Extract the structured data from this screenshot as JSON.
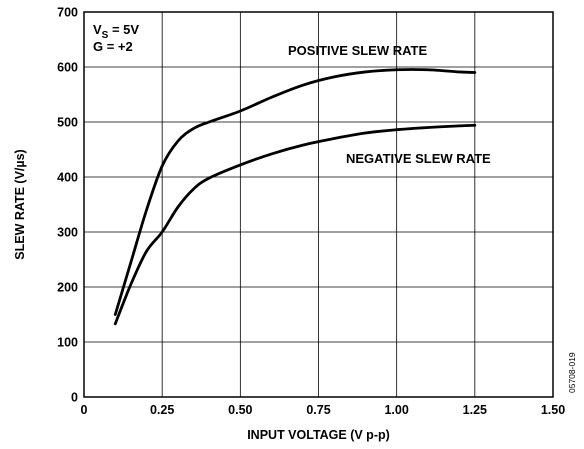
{
  "chart_data": {
    "type": "line",
    "title": "",
    "xlabel": "INPUT VOLTAGE (V p-p)",
    "ylabel": "SLEW RATE (V/µs)",
    "xlim": [
      0,
      1.5
    ],
    "ylim": [
      0,
      700
    ],
    "x_ticks": [
      "0",
      "0.25",
      "0.50",
      "0.75",
      "1.00",
      "1.25",
      "1.50"
    ],
    "x_tick_values": [
      0,
      0.25,
      0.5,
      0.75,
      1.0,
      1.25,
      1.5
    ],
    "y_ticks": [
      "0",
      "100",
      "200",
      "300",
      "400",
      "500",
      "600",
      "700"
    ],
    "y_tick_values": [
      0,
      100,
      200,
      300,
      400,
      500,
      600,
      700
    ],
    "grid": true,
    "conditions": {
      "vs_main": "V",
      "vs_sub": "S",
      "vs_value": " = 5V",
      "gain": "G = +2"
    },
    "series": [
      {
        "name": "POSITIVE SLEW RATE",
        "x": [
          0.1,
          0.15,
          0.2,
          0.25,
          0.3,
          0.35,
          0.4,
          0.5,
          0.6,
          0.7,
          0.8,
          0.9,
          1.0,
          1.1,
          1.2,
          1.25
        ],
        "y": [
          150,
          245,
          340,
          420,
          465,
          488,
          500,
          520,
          545,
          567,
          582,
          591,
          595,
          595,
          591,
          590
        ]
      },
      {
        "name": "NEGATIVE SLEW RATE",
        "x": [
          0.1,
          0.15,
          0.2,
          0.25,
          0.3,
          0.35,
          0.4,
          0.5,
          0.6,
          0.7,
          0.8,
          0.9,
          1.0,
          1.1,
          1.2,
          1.25
        ],
        "y": [
          133,
          205,
          265,
          300,
          345,
          378,
          398,
          422,
          442,
          458,
          470,
          480,
          486,
          490,
          493,
          494
        ]
      }
    ],
    "annotations": [
      "POSITIVE SLEW RATE",
      "NEGATIVE SLEW RATE"
    ],
    "figure_id": "05708-019"
  }
}
